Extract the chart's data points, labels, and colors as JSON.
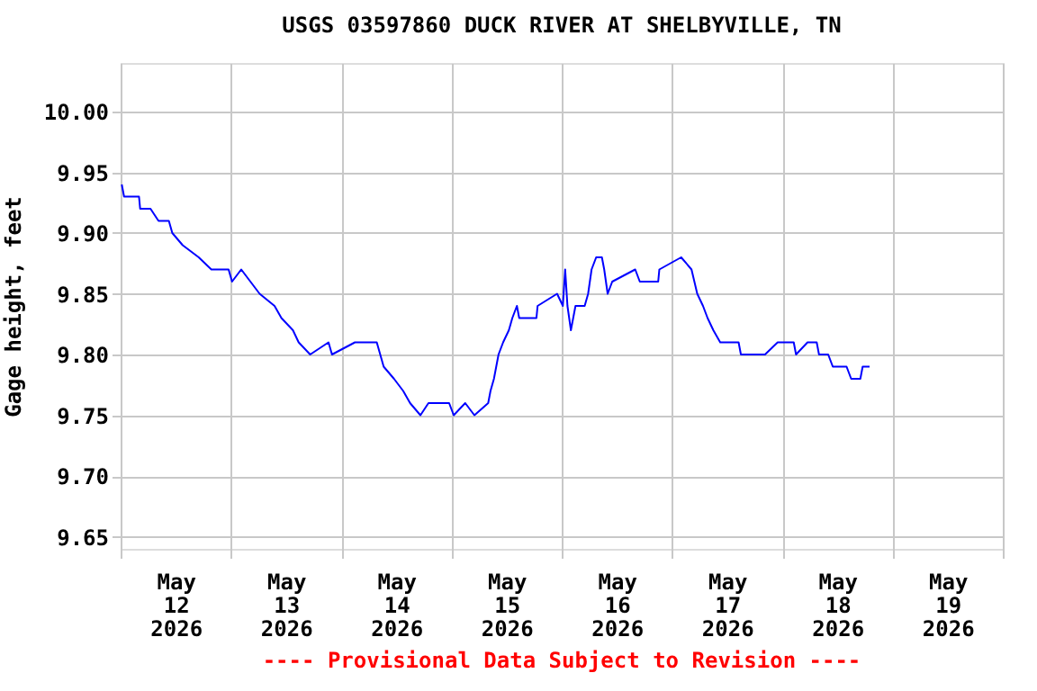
{
  "chart_data": {
    "type": "line",
    "title": "USGS 03597860 DUCK RIVER AT SHELBYVILLE, TN",
    "ylabel": "Gage height, feet",
    "annotations": [
      "---- Provisional Data Subject to Revision ----"
    ],
    "xlim": [
      "2026-05-12T00:00",
      "2026-05-20T00:00"
    ],
    "xticks": [
      {
        "value": "2026-05-12T00:00",
        "label": null
      },
      {
        "value": "2026-05-12T12:00",
        "label": "May\n12\n2026"
      },
      {
        "value": "2026-05-13T00:00",
        "label": null
      },
      {
        "value": "2026-05-13T12:00",
        "label": "May\n13\n2026"
      },
      {
        "value": "2026-05-14T00:00",
        "label": null
      },
      {
        "value": "2026-05-14T12:00",
        "label": "May\n14\n2026"
      },
      {
        "value": "2026-05-15T00:00",
        "label": null
      },
      {
        "value": "2026-05-15T12:00",
        "label": "May\n15\n2026"
      },
      {
        "value": "2026-05-16T00:00",
        "label": null
      },
      {
        "value": "2026-05-16T12:00",
        "label": "May\n16\n2026"
      },
      {
        "value": "2026-05-17T00:00",
        "label": null
      },
      {
        "value": "2026-05-17T12:00",
        "label": "May\n17\n2026"
      },
      {
        "value": "2026-05-18T00:00",
        "label": null
      },
      {
        "value": "2026-05-18T12:00",
        "label": "May\n18\n2026"
      },
      {
        "value": "2026-05-19T00:00",
        "label": null
      },
      {
        "value": "2026-05-19T12:00",
        "label": "May\n19\n2026"
      },
      {
        "value": "2026-05-20T00:00",
        "label": null
      }
    ],
    "ylim": [
      9.64,
      10.04
    ],
    "yticks": [
      {
        "value": 9.65,
        "label": "9.65"
      },
      {
        "value": 9.7,
        "label": "9.70"
      },
      {
        "value": 9.75,
        "label": "9.75"
      },
      {
        "value": 9.8,
        "label": "9.80"
      },
      {
        "value": 9.85,
        "label": "9.85"
      },
      {
        "value": 9.9,
        "label": "9.90"
      },
      {
        "value": 9.95,
        "label": "9.95"
      },
      {
        "value": 10.0,
        "label": "10.00"
      }
    ],
    "grid": true,
    "line_style": "solid",
    "marker": "none",
    "series": [
      {
        "color": "#0000ff",
        "x": [
          "2026-05-12T00:15",
          "2026-05-12T00:45",
          "2026-05-12T04:00",
          "2026-05-12T04:15",
          "2026-05-12T06:30",
          "2026-05-12T08:15",
          "2026-05-12T10:30",
          "2026-05-12T11:15",
          "2026-05-12T13:30",
          "2026-05-12T17:00",
          "2026-05-12T19:45",
          "2026-05-12T23:30",
          "2026-05-13T00:15",
          "2026-05-13T02:15",
          "2026-05-13T04:15",
          "2026-05-13T06:15",
          "2026-05-13T09:30",
          "2026-05-13T11:00",
          "2026-05-13T13:30",
          "2026-05-13T14:45",
          "2026-05-13T17:15",
          "2026-05-13T21:15",
          "2026-05-13T22:00",
          "2026-05-14T03:00",
          "2026-05-14T07:45",
          "2026-05-14T08:30",
          "2026-05-14T09:15",
          "2026-05-14T11:30",
          "2026-05-14T13:30",
          "2026-05-14T15:00",
          "2026-05-14T17:15",
          "2026-05-14T19:00",
          "2026-05-14T23:30",
          "2026-05-15T00:30",
          "2026-05-15T03:00",
          "2026-05-15T05:00",
          "2026-05-15T08:00",
          "2026-05-15T08:30",
          "2026-05-15T09:15",
          "2026-05-15T10:15",
          "2026-05-15T11:15",
          "2026-05-15T12:30",
          "2026-05-15T13:15",
          "2026-05-15T14:15",
          "2026-05-15T14:45",
          "2026-05-15T18:30",
          "2026-05-15T18:45",
          "2026-05-15T23:00",
          "2026-05-16T00:15",
          "2026-05-16T00:45",
          "2026-05-16T01:15",
          "2026-05-16T02:00",
          "2026-05-16T03:00",
          "2026-05-16T05:00",
          "2026-05-16T05:45",
          "2026-05-16T06:30",
          "2026-05-16T07:30",
          "2026-05-16T08:45",
          "2026-05-16T09:15",
          "2026-05-16T10:00",
          "2026-05-16T11:00",
          "2026-05-16T16:00",
          "2026-05-16T17:00",
          "2026-05-16T21:00",
          "2026-05-16T21:15",
          "2026-05-17T02:00",
          "2026-05-17T04:15",
          "2026-05-17T05:30",
          "2026-05-17T06:45",
          "2026-05-17T07:45",
          "2026-05-17T09:00",
          "2026-05-17T10:30",
          "2026-05-17T14:30",
          "2026-05-17T15:00",
          "2026-05-17T20:15",
          "2026-05-17T23:00",
          "2026-05-18T02:30",
          "2026-05-18T03:00",
          "2026-05-18T05:30",
          "2026-05-18T07:30",
          "2026-05-18T08:00",
          "2026-05-18T10:00",
          "2026-05-18T11:00",
          "2026-05-18T14:00",
          "2026-05-18T15:00",
          "2026-05-18T17:00",
          "2026-05-18T17:30",
          "2026-05-18T19:00"
        ],
        "values": [
          9.94,
          9.93,
          9.93,
          9.92,
          9.92,
          9.91,
          9.91,
          9.9,
          9.89,
          9.88,
          9.87,
          9.87,
          9.86,
          9.87,
          9.86,
          9.85,
          9.84,
          9.83,
          9.82,
          9.81,
          9.8,
          9.81,
          9.8,
          9.81,
          9.81,
          9.8,
          9.79,
          9.78,
          9.77,
          9.76,
          9.75,
          9.76,
          9.76,
          9.75,
          9.76,
          9.75,
          9.76,
          9.77,
          9.78,
          9.8,
          9.81,
          9.82,
          9.83,
          9.84,
          9.83,
          9.83,
          9.84,
          9.85,
          9.84,
          9.87,
          9.84,
          9.82,
          9.84,
          9.84,
          9.85,
          9.87,
          9.88,
          9.88,
          9.87,
          9.85,
          9.86,
          9.87,
          9.86,
          9.86,
          9.87,
          9.88,
          9.87,
          9.85,
          9.84,
          9.83,
          9.82,
          9.81,
          9.81,
          9.8,
          9.8,
          9.81,
          9.81,
          9.8,
          9.81,
          9.81,
          9.8,
          9.8,
          9.79,
          9.79,
          9.78,
          9.78,
          9.79,
          9.79
        ]
      }
    ]
  }
}
